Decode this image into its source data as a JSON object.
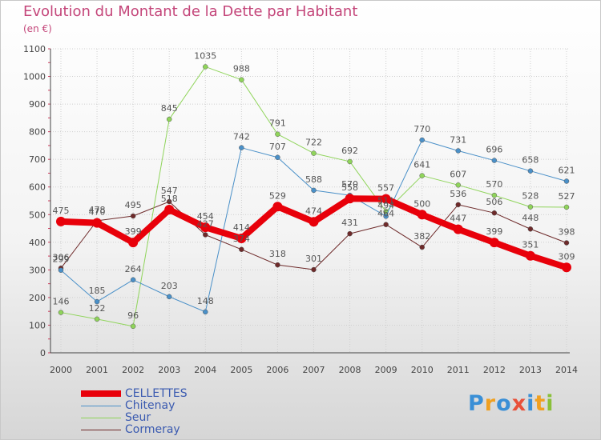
{
  "title": "Evolution du Montant de la Dette par Habitant",
  "unit": "(en €)",
  "colors": {
    "title": "#c4467a",
    "axis": "#444444",
    "grid": "#cfcfcf"
  },
  "logo": {
    "text": "Proxiti"
  },
  "chart_data": {
    "type": "line",
    "title": "Evolution du Montant de la Dette par Habitant",
    "subtitle": "(en €)",
    "xlabel": "",
    "ylabel": "",
    "ylim": [
      0,
      1100
    ],
    "yticks": [
      0,
      100,
      200,
      300,
      400,
      500,
      600,
      700,
      800,
      900,
      1000,
      1100
    ],
    "grid": true,
    "legend": "bottom-left",
    "x": [
      "2000",
      "2001",
      "2002",
      "2003",
      "2004",
      "2005",
      "2006",
      "2007",
      "2008",
      "2009",
      "2010",
      "2011",
      "2012",
      "2013",
      "2014"
    ],
    "series": [
      {
        "name": "Cormeray",
        "color": "#6e2a2a",
        "line_width": 1,
        "labels": [
          "306",
          "478",
          "495",
          "547",
          "427",
          "374",
          "318",
          "301",
          "431",
          "464",
          "382",
          "536",
          "506",
          "448",
          "398"
        ],
        "values": [
          306,
          478,
          495,
          547,
          427,
          374,
          318,
          301,
          431,
          464,
          382,
          536,
          506,
          448,
          398
        ]
      },
      {
        "name": "Seur",
        "color": "#8fd45a",
        "line_width": 1,
        "labels": [
          "146",
          "122",
          "96",
          "845",
          "1035",
          "988",
          "791",
          "722",
          "692",
          "511",
          "641",
          "607",
          "570",
          "528",
          "527"
        ],
        "values": [
          146,
          122,
          96,
          845,
          1035,
          988,
          791,
          722,
          692,
          511,
          641,
          607,
          570,
          528,
          527
        ]
      },
      {
        "name": "Chitenay",
        "color": "#4a90c8",
        "line_width": 1,
        "labels": [
          "299",
          "185",
          "264",
          "203",
          "148",
          "742",
          "707",
          "588",
          "570",
          "494",
          "770",
          "731",
          "696",
          "658",
          "621"
        ],
        "values": [
          299,
          185,
          264,
          203,
          148,
          742,
          707,
          588,
          570,
          494,
          770,
          731,
          696,
          658,
          621
        ]
      },
      {
        "name": "CELLETTES",
        "color": "#e8000a",
        "line_width": 8,
        "labels": [
          "475",
          "470",
          "399",
          "518",
          "454",
          "414",
          "529",
          "474",
          "558",
          "557",
          "500",
          "447",
          "399",
          "351",
          "309"
        ],
        "values": [
          475,
          470,
          399,
          518,
          454,
          414,
          529,
          474,
          558,
          557,
          500,
          447,
          399,
          351,
          309
        ]
      }
    ],
    "legend_entries": [
      {
        "name": "CELLETTES",
        "color": "#e8000a",
        "line_width": 8
      },
      {
        "name": "Chitenay",
        "color": "#4a90c8",
        "line_width": 1
      },
      {
        "name": "Seur",
        "color": "#8fd45a",
        "line_width": 1
      },
      {
        "name": "Cormeray",
        "color": "#6e2a2a",
        "line_width": 1
      }
    ]
  }
}
